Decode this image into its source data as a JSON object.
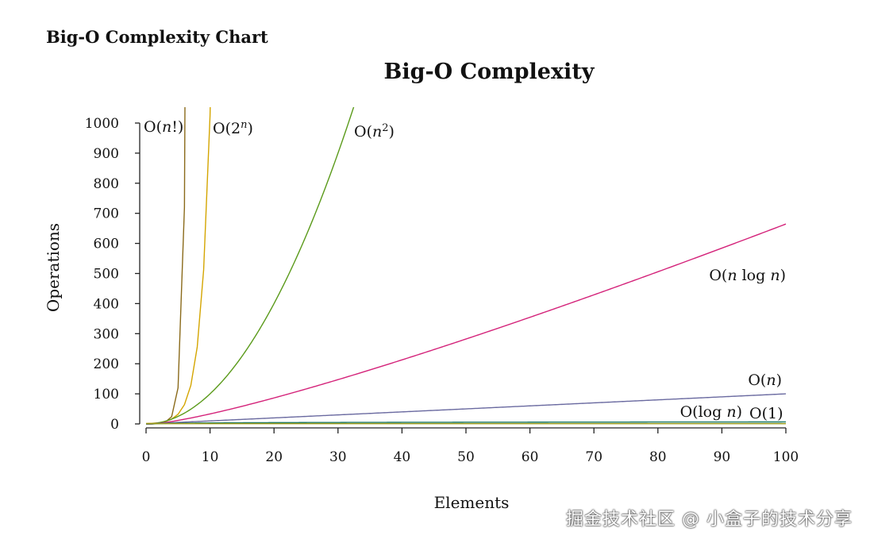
{
  "page": {
    "heading": "Big-O Complexity Chart",
    "watermark": "掘金技术社区 @ 小盒子的技术分享"
  },
  "chart_data": {
    "type": "line",
    "title": "Big-O Complexity",
    "xlabel": "Elements",
    "ylabel": "Operations",
    "xlim": [
      0,
      100
    ],
    "ylim": [
      0,
      1000
    ],
    "x_ticks": [
      0,
      10,
      20,
      30,
      40,
      50,
      60,
      70,
      80,
      90,
      100
    ],
    "y_ticks": [
      0,
      100,
      200,
      300,
      400,
      500,
      600,
      700,
      800,
      900,
      1000
    ],
    "grid": false,
    "series": [
      {
        "name": "O(n!)",
        "label_parts": [
          "O(",
          "n",
          "!)"
        ],
        "color": "#8a6a1a",
        "fn": "factorial",
        "label_at": "top-left"
      },
      {
        "name": "O(2^n)",
        "label_parts": [
          "O(2",
          "n",
          ")"
        ],
        "color": "#d4a500",
        "fn": "exp2",
        "label_at": "top-right"
      },
      {
        "name": "O(n^2)",
        "label_parts": [
          "O(",
          "n",
          "2",
          ")"
        ],
        "color": "#5a9a1a",
        "fn": "square",
        "label_at": "top-right"
      },
      {
        "name": "O(n log n)",
        "label_parts": [
          "O(",
          "n",
          " log ",
          "n",
          ")"
        ],
        "color": "#d4237a",
        "fn": "nlogn",
        "label_at": "end-above"
      },
      {
        "name": "O(n)",
        "label_parts": [
          "O(",
          "n",
          ")"
        ],
        "color": "#6a6aa0",
        "fn": "linear",
        "label_at": "end-above"
      },
      {
        "name": "O(log n)",
        "label_parts": [
          "O(log ",
          "n",
          ")"
        ],
        "color": "#1a7a6a",
        "fn": "log",
        "label_at": "end-below"
      },
      {
        "name": "O(1)",
        "label_parts": [
          "O(1)"
        ],
        "color": "#9a9a1a",
        "fn": "const",
        "label_at": "end-right"
      }
    ]
  }
}
